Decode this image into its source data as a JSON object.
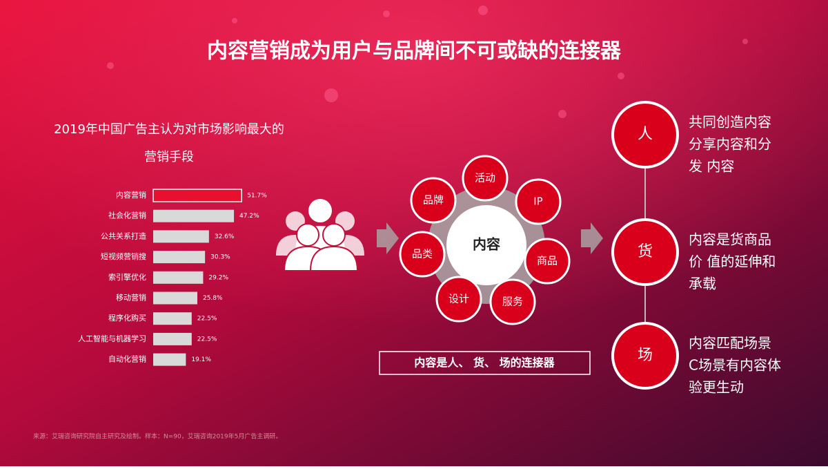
{
  "title": "内容营销成为用户与品牌间不可或缺的连接器",
  "chart_data": {
    "type": "bar",
    "orientation": "horizontal",
    "title": [
      "2019年中国广告主认为对市场影响最大的",
      "营销手段"
    ],
    "categories": [
      "内容营销",
      "社会化营销",
      "公共关系打造",
      "短视频营销搜",
      "索引擎优化",
      "移动营销",
      "程序化购买",
      "人工智能与机器学习",
      "自动化营销"
    ],
    "values": [
      51.7,
      47.2,
      32.6,
      30.3,
      29.2,
      25.8,
      22.5,
      22.5,
      19.1
    ],
    "value_labels": [
      "51.7%",
      "47.2%",
      "32.6%",
      "30.3%",
      "29.2%",
      "25.8%",
      "22.5%",
      "22.5%",
      "19.1%"
    ],
    "colors": [
      "#e8102e",
      "#d9d9d9",
      "#d9d9d9",
      "#d9d9d9",
      "#d9d9d9",
      "#d9d9d9",
      "#d9d9d9",
      "#d9d9d9",
      "#d9d9d9"
    ]
  },
  "diagram": {
    "hub": "内容",
    "satellites": [
      "品牌",
      "活动",
      "IP",
      "商品",
      "服务",
      "设计",
      "品类"
    ],
    "caption": "内容是人、 货、 场的连接器"
  },
  "pillars": [
    {
      "label": "人",
      "lines": [
        "共同创造内容",
        "分享内容和分",
        "发 内容"
      ]
    },
    {
      "label": "货",
      "lines": [
        "内容是货商品",
        "价 值的延伸和",
        "承载"
      ]
    },
    {
      "label": "场",
      "lines": [
        "内容匹配场景",
        "C场景有内容体",
        "验更生动"
      ]
    }
  ],
  "footnote": "来源：艾瑞咨询研究院自主研究及绘制。样本：N=90，艾瑞咨询2019年5月广告主调研。"
}
